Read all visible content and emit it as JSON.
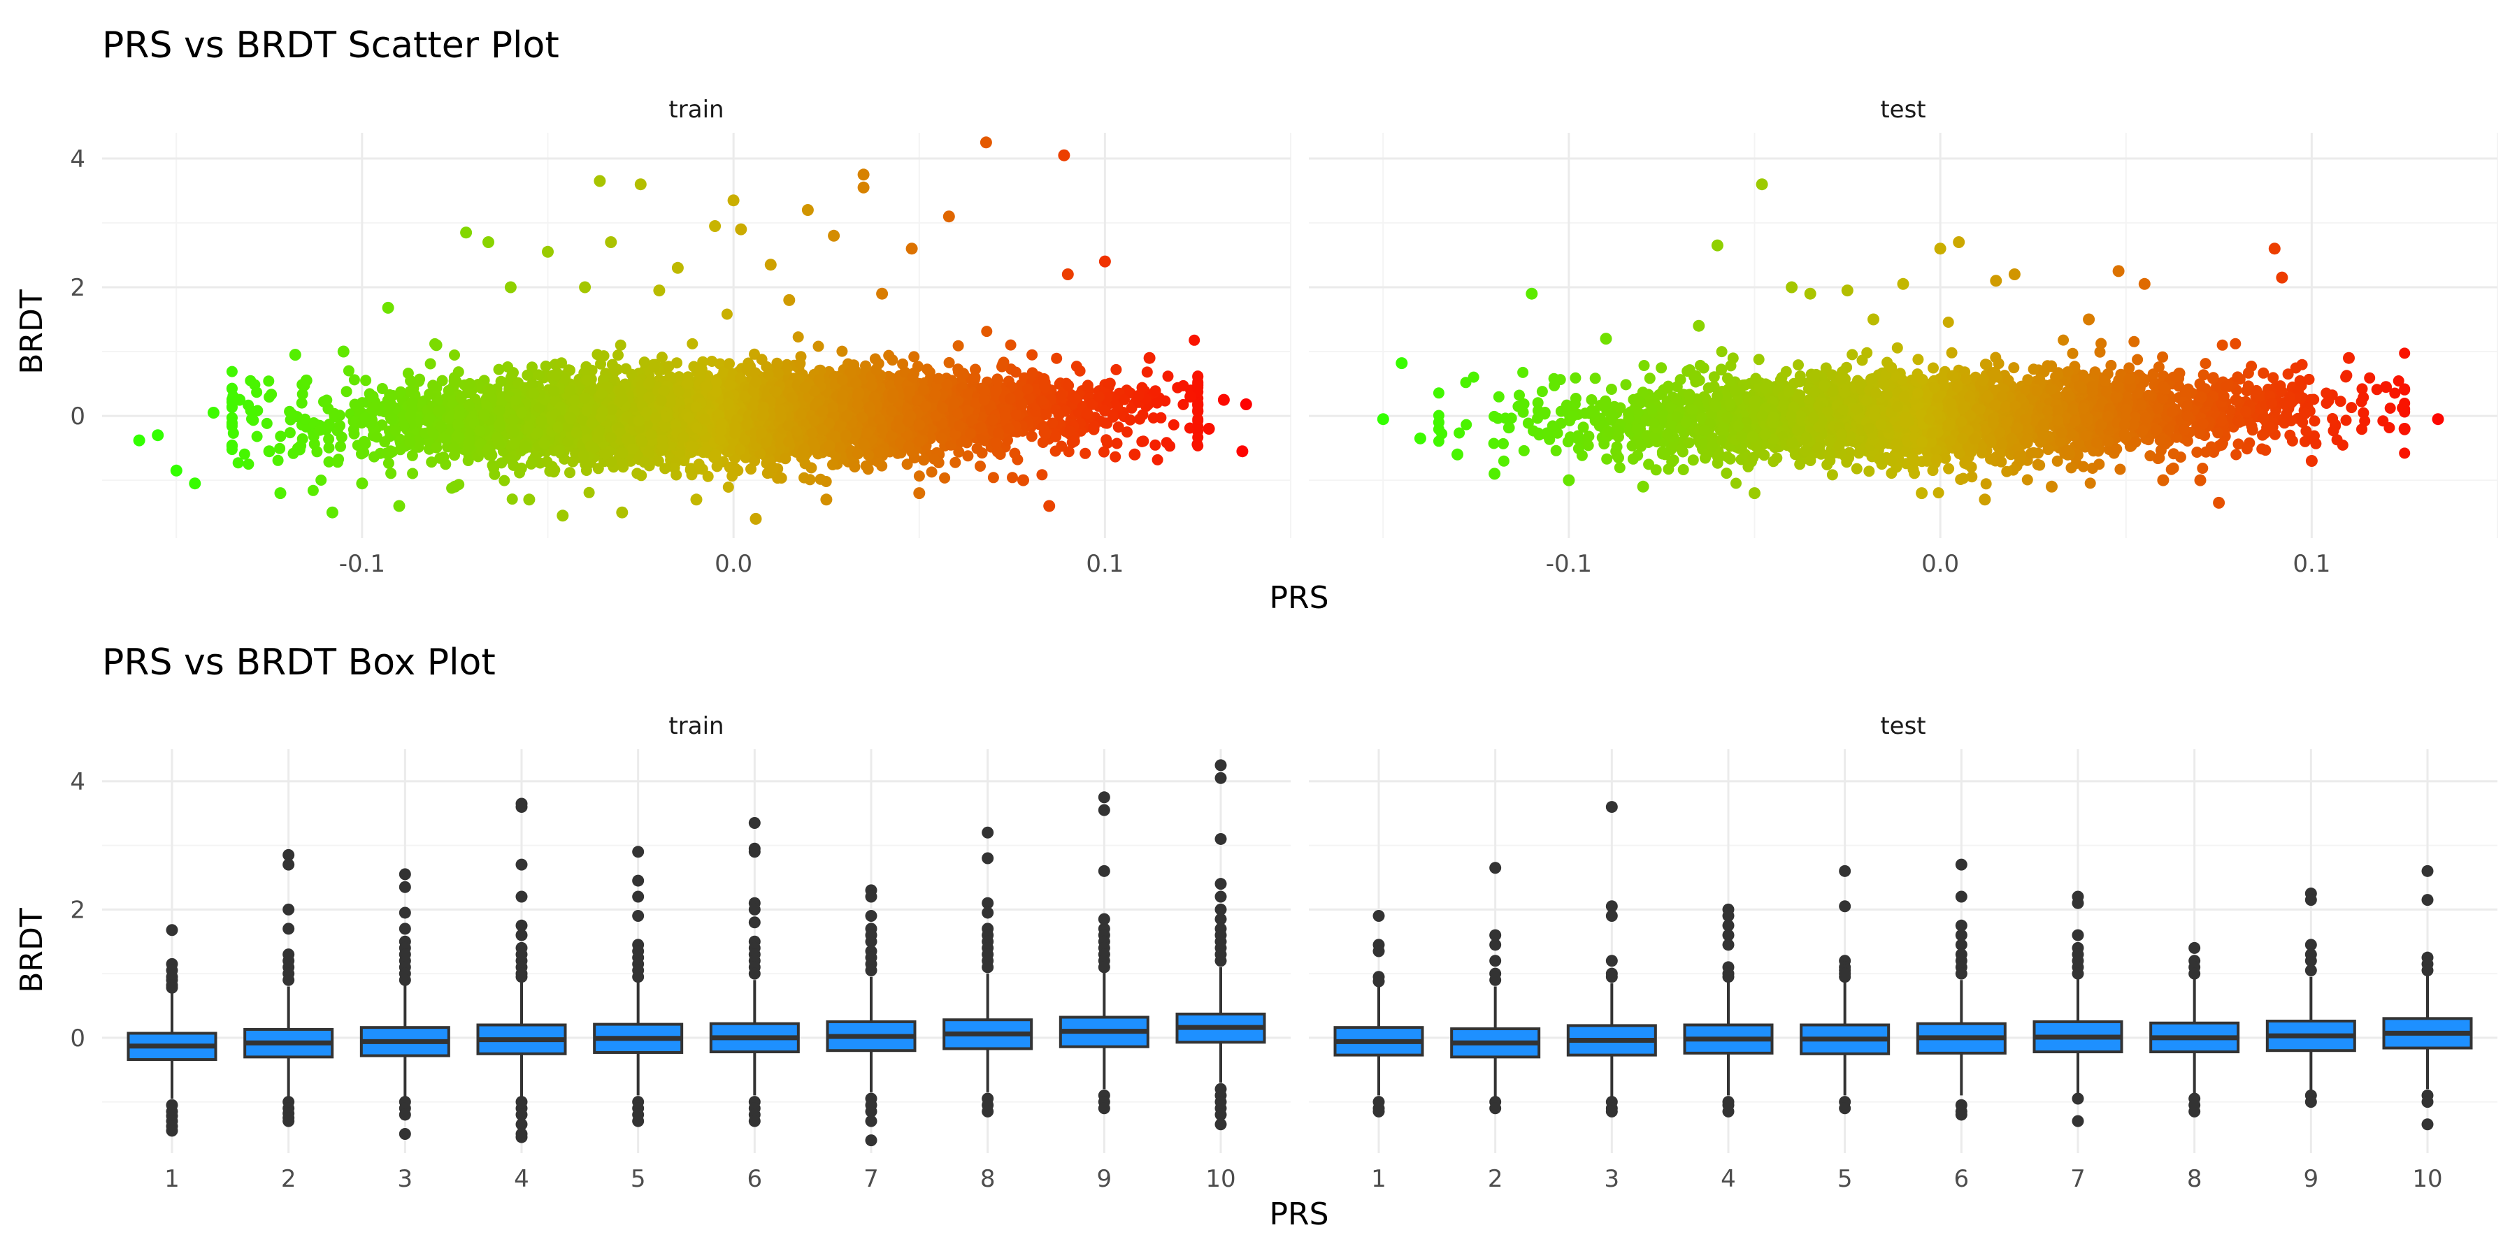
{
  "colors": {
    "low": "#33ff00",
    "mid": "#c8b400",
    "high": "#ff0000",
    "box_fill": "#1e90ff",
    "ink": "#333333"
  },
  "chart_data": [
    {
      "type": "scatter",
      "title": "PRS vs BRDT Scatter Plot",
      "xlabel": "PRS",
      "ylabel": "BRDT",
      "facets": [
        "train",
        "test"
      ],
      "xlim": [
        -0.17,
        0.15
      ],
      "ylim": [
        -1.9,
        4.4
      ],
      "x_ticks": [
        -0.1,
        0.0,
        0.1
      ],
      "x_tick_labels": [
        "-0.1",
        "0.0",
        "0.1"
      ],
      "y_ticks": [
        0,
        2,
        4
      ],
      "y_tick_labels": [
        "0",
        "2",
        "4"
      ],
      "color_scale": {
        "var": "PRS",
        "low": -0.15,
        "high": 0.14
      },
      "grid": true,
      "legend": "none",
      "series": [
        {
          "facet": "train",
          "points": [
            [
              -0.16,
              -0.38
            ],
            [
              -0.155,
              -0.3
            ],
            [
              -0.15,
              -0.85
            ],
            [
              -0.145,
              -1.05
            ],
            [
              -0.14,
              0.05
            ],
            [
              -0.133,
              0.25
            ],
            [
              -0.125,
              -0.55
            ],
            [
              -0.122,
              -1.2
            ],
            [
              -0.118,
              0.95
            ],
            [
              -0.115,
              0.55
            ],
            [
              -0.108,
              -1.5
            ],
            [
              -0.105,
              1.0
            ],
            [
              -0.1,
              -1.05
            ],
            [
              -0.093,
              1.68
            ],
            [
              -0.09,
              -1.4
            ],
            [
              -0.08,
              1.1
            ],
            [
              -0.075,
              -1.1
            ],
            [
              -0.072,
              2.85
            ],
            [
              -0.066,
              2.7
            ],
            [
              -0.06,
              2.0
            ],
            [
              -0.055,
              -1.3
            ],
            [
              -0.05,
              2.55
            ],
            [
              -0.046,
              -1.55
            ],
            [
              -0.04,
              2.0
            ],
            [
              -0.036,
              3.65
            ],
            [
              -0.033,
              2.7
            ],
            [
              -0.03,
              -1.5
            ],
            [
              -0.025,
              3.6
            ],
            [
              -0.02,
              1.95
            ],
            [
              -0.015,
              2.3
            ],
            [
              -0.01,
              -1.3
            ],
            [
              -0.005,
              2.95
            ],
            [
              0.0,
              3.35
            ],
            [
              0.002,
              2.9
            ],
            [
              0.006,
              -1.6
            ],
            [
              0.01,
              2.35
            ],
            [
              0.015,
              1.8
            ],
            [
              0.02,
              3.2
            ],
            [
              0.025,
              -1.3
            ],
            [
              0.027,
              2.8
            ],
            [
              0.035,
              3.75
            ],
            [
              0.035,
              3.55
            ],
            [
              0.04,
              1.9
            ],
            [
              0.048,
              2.6
            ],
            [
              0.05,
              -1.2
            ],
            [
              0.058,
              3.1
            ],
            [
              0.068,
              4.25
            ],
            [
              0.078,
              -1.0
            ],
            [
              0.085,
              -1.4
            ],
            [
              0.089,
              4.05
            ],
            [
              0.09,
              2.2
            ],
            [
              0.1,
              2.4
            ],
            [
              0.108,
              -0.6
            ],
            [
              0.112,
              0.9
            ],
            [
              0.123,
              0.3
            ],
            [
              0.128,
              -0.2
            ],
            [
              0.132,
              0.25
            ],
            [
              0.137,
              -0.55
            ],
            [
              0.138,
              0.18
            ]
          ]
        },
        {
          "facet": "test",
          "points": [
            [
              -0.15,
              -0.05
            ],
            [
              -0.145,
              0.82
            ],
            [
              -0.14,
              -0.35
            ],
            [
              -0.13,
              -0.6
            ],
            [
              -0.12,
              -0.9
            ],
            [
              -0.11,
              1.9
            ],
            [
              -0.1,
              -1.0
            ],
            [
              -0.09,
              1.2
            ],
            [
              -0.08,
              -1.1
            ],
            [
              -0.065,
              1.4
            ],
            [
              -0.06,
              2.65
            ],
            [
              -0.05,
              -1.2
            ],
            [
              -0.048,
              3.6
            ],
            [
              -0.04,
              2.0
            ],
            [
              -0.035,
              1.9
            ],
            [
              -0.025,
              1.95
            ],
            [
              -0.018,
              1.5
            ],
            [
              -0.01,
              2.05
            ],
            [
              -0.005,
              -1.2
            ],
            [
              0.0,
              2.6
            ],
            [
              0.005,
              2.7
            ],
            [
              0.012,
              -1.3
            ],
            [
              0.015,
              2.1
            ],
            [
              0.02,
              2.2
            ],
            [
              0.03,
              -1.1
            ],
            [
              0.04,
              1.5
            ],
            [
              0.048,
              2.25
            ],
            [
              0.055,
              2.05
            ],
            [
              0.06,
              -1.0
            ],
            [
              0.07,
              -1.0
            ],
            [
              0.075,
              -1.35
            ],
            [
              0.09,
              2.6
            ],
            [
              0.092,
              2.15
            ],
            [
              0.1,
              -0.7
            ],
            [
              0.11,
              0.9
            ],
            [
              0.12,
              0.45
            ],
            [
              0.125,
              -0.2
            ],
            [
              0.134,
              -0.05
            ]
          ]
        }
      ]
    },
    {
      "type": "box",
      "title": "PRS vs BRDT Box Plot",
      "xlabel": "PRS",
      "ylabel": "BRDT",
      "facets": [
        "train",
        "test"
      ],
      "categories": [
        "1",
        "2",
        "3",
        "4",
        "5",
        "6",
        "7",
        "8",
        "9",
        "10"
      ],
      "ylim": [
        -1.8,
        4.5
      ],
      "y_ticks": [
        0,
        2,
        4
      ],
      "y_tick_labels": [
        "0",
        "2",
        "4"
      ],
      "grid": true,
      "legend": "none",
      "series": [
        {
          "facet": "train",
          "boxes": [
            {
              "q1": -0.34,
              "median": -0.13,
              "q3": 0.07,
              "wlo": -0.95,
              "whi": 0.7,
              "outliers": [
                1.68,
                1.15,
                1.05,
                0.95,
                0.9,
                0.82,
                0.78,
                -1.05,
                -1.15,
                -1.22,
                -1.3,
                -1.38,
                -1.45
              ]
            },
            {
              "q1": -0.3,
              "median": -0.08,
              "q3": 0.13,
              "wlo": -0.95,
              "whi": 0.8,
              "outliers": [
                2.85,
                2.7,
                2.0,
                1.7,
                1.3,
                1.2,
                1.1,
                1.0,
                0.9,
                -1.0,
                -1.1,
                -1.18,
                -1.25,
                -1.3
              ]
            },
            {
              "q1": -0.28,
              "median": -0.06,
              "q3": 0.16,
              "wlo": -0.95,
              "whi": 0.85,
              "outliers": [
                2.55,
                2.35,
                1.95,
                1.7,
                1.5,
                1.4,
                1.3,
                1.2,
                1.1,
                1.0,
                0.9,
                -1.0,
                -1.1,
                -1.2,
                -1.5
              ]
            },
            {
              "q1": -0.25,
              "median": -0.03,
              "q3": 0.2,
              "wlo": -0.95,
              "whi": 0.88,
              "outliers": [
                3.65,
                3.6,
                2.7,
                2.2,
                1.75,
                1.6,
                1.4,
                1.3,
                1.2,
                1.1,
                1.0,
                0.95,
                -1.0,
                -1.1,
                -1.2,
                -1.35,
                -1.5,
                -1.55
              ]
            },
            {
              "q1": -0.23,
              "median": -0.01,
              "q3": 0.21,
              "wlo": -0.9,
              "whi": 0.9,
              "outliers": [
                2.9,
                2.45,
                2.2,
                1.9,
                1.45,
                1.35,
                1.25,
                1.15,
                1.05,
                0.95,
                -1.0,
                -1.1,
                -1.2,
                -1.3
              ]
            },
            {
              "q1": -0.22,
              "median": 0.0,
              "q3": 0.22,
              "wlo": -0.9,
              "whi": 0.9,
              "outliers": [
                3.35,
                2.95,
                2.9,
                2.1,
                2.0,
                1.8,
                1.5,
                1.4,
                1.3,
                1.2,
                1.1,
                1.0,
                -1.0,
                -1.1,
                -1.2,
                -1.3
              ]
            },
            {
              "q1": -0.2,
              "median": 0.02,
              "q3": 0.25,
              "wlo": -0.85,
              "whi": 0.95,
              "outliers": [
                2.3,
                2.2,
                1.9,
                1.7,
                1.6,
                1.5,
                1.35,
                1.25,
                1.15,
                1.05,
                -0.95,
                -1.05,
                -1.15,
                -1.3,
                -1.6
              ]
            },
            {
              "q1": -0.17,
              "median": 0.06,
              "q3": 0.28,
              "wlo": -0.85,
              "whi": 1.0,
              "outliers": [
                3.2,
                2.8,
                2.1,
                1.95,
                1.7,
                1.6,
                1.5,
                1.4,
                1.3,
                1.2,
                1.1,
                -0.95,
                -1.05,
                -1.15
              ]
            },
            {
              "q1": -0.14,
              "median": 0.1,
              "q3": 0.32,
              "wlo": -0.8,
              "whi": 1.05,
              "outliers": [
                3.75,
                3.55,
                2.6,
                1.85,
                1.7,
                1.6,
                1.5,
                1.4,
                1.3,
                1.2,
                1.1,
                -0.9,
                -1.0,
                -1.1
              ]
            },
            {
              "q1": -0.07,
              "median": 0.16,
              "q3": 0.37,
              "wlo": -0.7,
              "whi": 1.1,
              "outliers": [
                4.25,
                4.05,
                3.1,
                2.4,
                2.2,
                2.0,
                1.85,
                1.7,
                1.6,
                1.5,
                1.4,
                1.3,
                1.2,
                -0.8,
                -0.9,
                -1.0,
                -1.1,
                -1.2,
                -1.35
              ]
            }
          ]
        },
        {
          "facet": "test",
          "boxes": [
            {
              "q1": -0.27,
              "median": -0.06,
              "q3": 0.16,
              "wlo": -0.9,
              "whi": 0.8,
              "outliers": [
                1.9,
                1.45,
                1.35,
                0.95,
                0.88,
                -1.0,
                -1.1,
                -1.15
              ]
            },
            {
              "q1": -0.3,
              "median": -0.08,
              "q3": 0.14,
              "wlo": -0.95,
              "whi": 0.8,
              "outliers": [
                2.65,
                1.6,
                1.45,
                1.2,
                1.0,
                0.9,
                -1.0,
                -1.1
              ]
            },
            {
              "q1": -0.27,
              "median": -0.04,
              "q3": 0.19,
              "wlo": -0.95,
              "whi": 0.85,
              "outliers": [
                3.6,
                2.05,
                1.9,
                1.2,
                1.0,
                0.95,
                -1.0,
                -1.1,
                -1.15
              ]
            },
            {
              "q1": -0.24,
              "median": -0.02,
              "q3": 0.2,
              "wlo": -0.9,
              "whi": 0.88,
              "outliers": [
                2.0,
                1.9,
                1.75,
                1.6,
                1.45,
                1.1,
                1.0,
                0.95,
                -1.0,
                -1.05,
                -1.15
              ]
            },
            {
              "q1": -0.25,
              "median": -0.02,
              "q3": 0.2,
              "wlo": -0.9,
              "whi": 0.88,
              "outliers": [
                2.6,
                2.05,
                1.2,
                1.1,
                1.05,
                1.0,
                0.95,
                -1.0,
                -1.1
              ]
            },
            {
              "q1": -0.24,
              "median": 0.0,
              "q3": 0.22,
              "wlo": -0.9,
              "whi": 0.9,
              "outliers": [
                2.7,
                2.2,
                1.75,
                1.6,
                1.45,
                1.3,
                1.2,
                1.1,
                1.0,
                -1.05,
                -1.15,
                -1.2
              ]
            },
            {
              "q1": -0.22,
              "median": 0.01,
              "q3": 0.25,
              "wlo": -0.88,
              "whi": 0.95,
              "outliers": [
                2.2,
                2.1,
                1.6,
                1.4,
                1.3,
                1.2,
                1.1,
                1.0,
                -0.95,
                -1.3
              ]
            },
            {
              "q1": -0.22,
              "median": 0.0,
              "q3": 0.23,
              "wlo": -0.88,
              "whi": 0.92,
              "outliers": [
                1.4,
                1.2,
                1.1,
                1.0,
                -0.95,
                -1.05,
                -1.15
              ]
            },
            {
              "q1": -0.2,
              "median": 0.03,
              "q3": 0.26,
              "wlo": -0.85,
              "whi": 0.95,
              "outliers": [
                2.25,
                2.15,
                1.45,
                1.3,
                1.2,
                1.05,
                -0.9,
                -1.0
              ]
            },
            {
              "q1": -0.16,
              "median": 0.07,
              "q3": 0.3,
              "wlo": -0.8,
              "whi": 1.0,
              "outliers": [
                2.6,
                2.15,
                1.25,
                1.15,
                1.05,
                -0.9,
                -1.0,
                -1.35
              ]
            }
          ]
        }
      ]
    }
  ]
}
